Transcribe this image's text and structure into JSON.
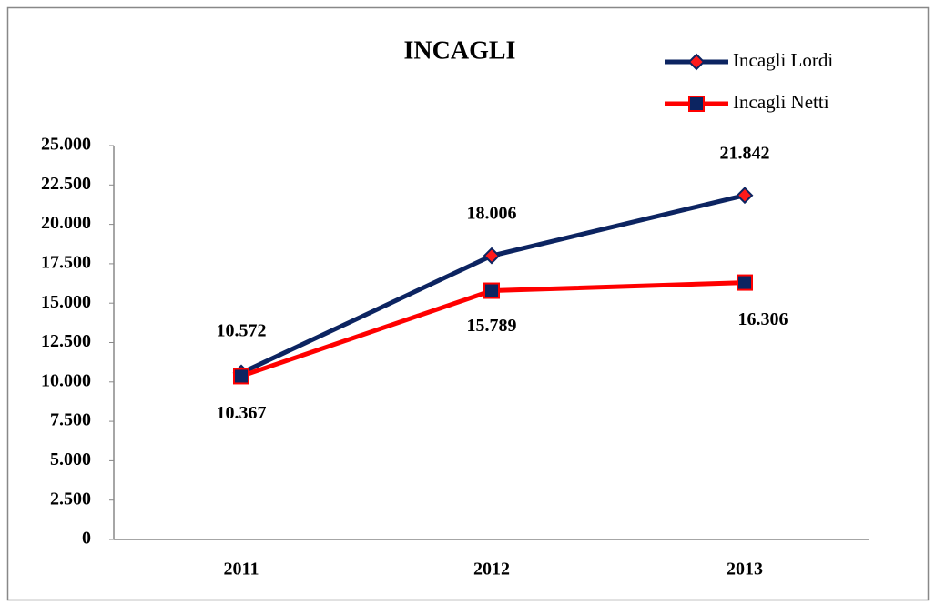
{
  "chart_data": {
    "type": "line",
    "title": "INCAGLI",
    "categories": [
      "2011",
      "2012",
      "2013"
    ],
    "series": [
      {
        "name": "Incagli Lordi",
        "color": "#0c2461",
        "marker_color": "#ff1a1a",
        "marker": "diamond",
        "values": [
          10572,
          18006,
          21842
        ],
        "value_labels": [
          "10.572",
          "18.006",
          "21.842"
        ]
      },
      {
        "name": "Incagli Netti",
        "color": "#ff0000",
        "marker_color": "#0c2461",
        "marker": "square",
        "values": [
          10367,
          15789,
          16306
        ],
        "value_labels": [
          "10.367",
          "15.789",
          "16.306"
        ]
      }
    ],
    "ylim": [
      0,
      25000
    ],
    "yticks": [
      0,
      {
        "value": 2500,
        "label": "2.500"
      },
      {
        "value": 5000,
        "label": "5.000"
      },
      {
        "value": 7500,
        "label": "7.500"
      },
      {
        "value": 10000,
        "label": "10.000"
      },
      {
        "value": 12500,
        "label": "12.500"
      },
      {
        "value": 15000,
        "label": "15.000"
      },
      {
        "value": 17500,
        "label": "17.500"
      },
      {
        "value": 20000,
        "label": "20.000"
      },
      {
        "value": 22500,
        "label": "22.500"
      },
      {
        "value": 25000,
        "label": "25.000"
      }
    ],
    "grid": false,
    "legend": "top-right"
  }
}
